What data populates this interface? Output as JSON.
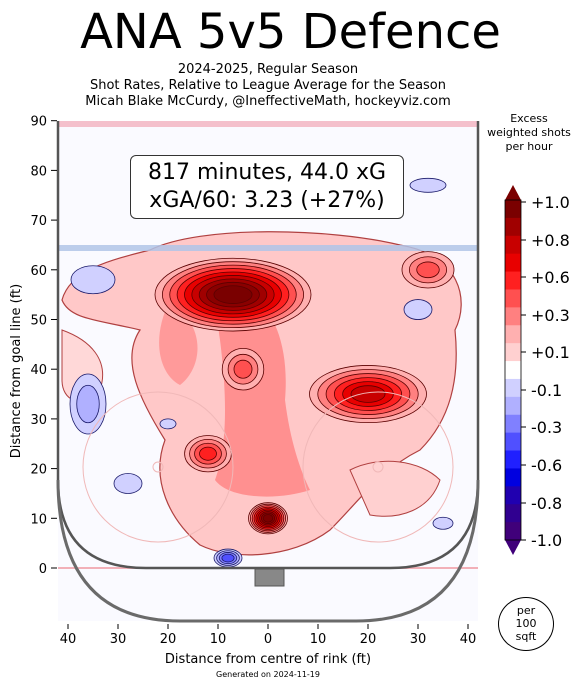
{
  "header": {
    "title": "ANA 5v5 Defence",
    "subtitle_lines": [
      "2024-2025, Regular Season",
      "Shot Rates, Relative to League Average for the Season",
      "Micah Blake McCurdy, @IneffectiveMath, hockeyviz.com"
    ]
  },
  "stats_box": {
    "line1": "817 minutes, 44.0 xG",
    "line2": "xGA/60: 3.23 (+27%)"
  },
  "colorbar": {
    "title_lines": [
      "Excess",
      "weighted shots",
      "per hour"
    ],
    "tick_labels": [
      "+1.0",
      "+0.8",
      "+0.6",
      "+0.3",
      "+0.1",
      "-0.1",
      "-0.3",
      "-0.6",
      "-0.8",
      "-1.0"
    ],
    "bands": [
      "#7a0000",
      "#a00000",
      "#c80000",
      "#e80000",
      "#ff2020",
      "#ff5050",
      "#ff8080",
      "#ffb0b0",
      "#ffd0d0",
      "#ffffff",
      "#d0d0ff",
      "#b0b0ff",
      "#8080ff",
      "#5050ff",
      "#2020ff",
      "#0000e0",
      "#2000b0",
      "#300090",
      "#40007a"
    ]
  },
  "per_unit": {
    "lines": [
      "per",
      "100",
      "sqft"
    ]
  },
  "footer": "Generated on 2024-11-19",
  "chart_data": {
    "type": "heatmap",
    "title": "ANA 5v5 Defence",
    "xlabel": "Distance from centre of rink (ft)",
    "ylabel": "Distance from goal line (ft)",
    "xlim": [
      -42,
      42
    ],
    "ylim": [
      -11,
      90
    ],
    "x_ticks": [
      -40,
      -30,
      -20,
      -10,
      0,
      10,
      20,
      30,
      40
    ],
    "x_tick_labels": [
      "40",
      "30",
      "20",
      "10",
      "0",
      "10",
      "20",
      "30",
      "40"
    ],
    "y_ticks": [
      0,
      10,
      20,
      30,
      40,
      50,
      60,
      70,
      80,
      90
    ],
    "colorbar_range": [
      -1.0,
      1.0
    ],
    "hotspots": [
      {
        "x": -7,
        "y": 55,
        "value": 0.95
      },
      {
        "x": 0,
        "y": 10,
        "value": 1.0
      },
      {
        "x": 20,
        "y": 35,
        "value": 0.7
      },
      {
        "x": 32,
        "y": 60,
        "value": 0.3
      },
      {
        "x": -12,
        "y": 23,
        "value": 0.4
      },
      {
        "x": -5,
        "y": 40,
        "value": 0.3
      }
    ],
    "coldspots": [
      {
        "x": -36,
        "y": 33,
        "value": -0.35
      },
      {
        "x": -35,
        "y": 58,
        "value": -0.2
      },
      {
        "x": -28,
        "y": 17,
        "value": -0.15
      },
      {
        "x": 32,
        "y": 77,
        "value": -0.15
      },
      {
        "x": 30,
        "y": 52,
        "value": -0.2
      },
      {
        "x": -8,
        "y": 2,
        "value": -0.7
      },
      {
        "x": 35,
        "y": 9,
        "value": -0.15
      },
      {
        "x": -20,
        "y": 29,
        "value": -0.1
      }
    ]
  }
}
